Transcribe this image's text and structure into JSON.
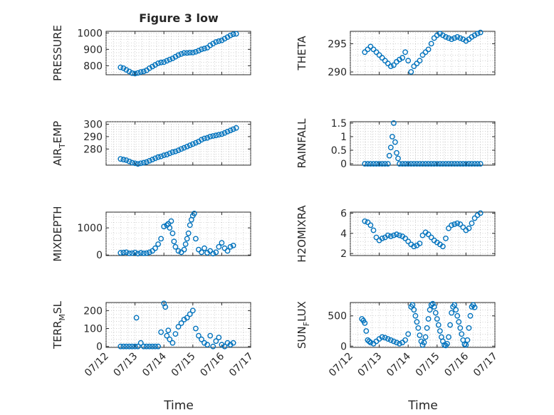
{
  "figure": {
    "title": "Figure 3 low",
    "xlabel": "Time",
    "x_tick_labels": [
      "07/12",
      "07/13",
      "07/14",
      "07/15",
      "07/16",
      "07/17"
    ]
  },
  "chart_data": [
    {
      "type": "scatter",
      "ylabel": "PRESSURE",
      "x_range": [
        "07/12",
        "07/17"
      ],
      "ylim": [
        745,
        1010
      ],
      "yticks": [
        800,
        900,
        1000
      ],
      "grid": true,
      "marker_color": "#0072BD",
      "x": [
        12.5,
        12.6,
        12.7,
        12.8,
        12.9,
        13.0,
        13.1,
        13.2,
        13.3,
        13.4,
        13.5,
        13.6,
        13.7,
        13.8,
        13.9,
        14.0,
        14.1,
        14.2,
        14.3,
        14.4,
        14.5,
        14.6,
        14.7,
        14.8,
        14.9,
        15.0,
        15.1,
        15.2,
        15.3,
        15.4,
        15.5,
        15.6,
        15.7,
        15.8,
        15.9,
        16.0,
        16.1,
        16.2,
        16.3,
        16.4,
        16.5
      ],
      "y": [
        790,
        785,
        775,
        765,
        755,
        752,
        756,
        762,
        765,
        772,
        785,
        795,
        805,
        815,
        820,
        822,
        830,
        838,
        845,
        855,
        865,
        872,
        878,
        878,
        880,
        880,
        885,
        892,
        900,
        905,
        910,
        925,
        935,
        945,
        950,
        955,
        965,
        975,
        985,
        992,
        995
      ]
    },
    {
      "type": "scatter",
      "ylabel": "THETA",
      "x_range": [
        "07/12",
        "07/17"
      ],
      "ylim": [
        289.5,
        297.2
      ],
      "yticks": [
        290,
        295
      ],
      "grid": true,
      "marker_color": "#0072BD",
      "x": [
        12.5,
        12.6,
        12.7,
        12.8,
        12.9,
        13.0,
        13.1,
        13.2,
        13.3,
        13.4,
        13.5,
        13.6,
        13.7,
        13.8,
        13.9,
        14.0,
        14.1,
        14.2,
        14.3,
        14.4,
        14.5,
        14.6,
        14.7,
        14.8,
        14.9,
        15.0,
        15.1,
        15.2,
        15.3,
        15.4,
        15.5,
        15.6,
        15.7,
        15.8,
        15.9,
        16.0,
        16.1,
        16.2,
        16.3,
        16.4,
        16.5
      ],
      "y": [
        293.5,
        294.0,
        294.5,
        294.0,
        293.5,
        293.0,
        292.5,
        292.0,
        291.5,
        291.0,
        291.2,
        291.8,
        292.2,
        292.5,
        293.5,
        292.0,
        290.0,
        291.0,
        291.5,
        292.0,
        293.0,
        293.5,
        294.0,
        295.0,
        296.0,
        296.5,
        296.8,
        296.5,
        296.2,
        296.0,
        295.8,
        296.0,
        296.2,
        296.0,
        295.8,
        295.5,
        295.8,
        296.2,
        296.5,
        296.8,
        297.0
      ]
    },
    {
      "type": "scatter",
      "ylabel": "AIR_TEMP",
      "x_range": [
        "07/12",
        "07/17"
      ],
      "ylim": [
        267,
        302
      ],
      "yticks": [
        280,
        290,
        300
      ],
      "grid": true,
      "marker_color": "#0072BD",
      "x": [
        12.5,
        12.6,
        12.7,
        12.8,
        12.9,
        13.0,
        13.1,
        13.2,
        13.3,
        13.4,
        13.5,
        13.6,
        13.7,
        13.8,
        13.9,
        14.0,
        14.1,
        14.2,
        14.3,
        14.4,
        14.5,
        14.6,
        14.7,
        14.8,
        14.9,
        15.0,
        15.1,
        15.2,
        15.3,
        15.4,
        15.5,
        15.6,
        15.7,
        15.8,
        15.9,
        16.0,
        16.1,
        16.2,
        16.3,
        16.4,
        16.5
      ],
      "y": [
        272,
        271.5,
        271,
        270,
        269,
        268.5,
        268,
        268.5,
        269,
        269.5,
        270.5,
        271.5,
        272.5,
        273.5,
        274,
        275,
        275.5,
        276.5,
        277.5,
        278,
        279,
        280,
        281,
        282,
        283,
        284,
        285,
        286,
        287.5,
        288.5,
        289,
        290,
        290.5,
        291,
        291.5,
        292,
        293,
        294,
        295,
        296,
        297
      ]
    },
    {
      "type": "scatter",
      "ylabel": "RAINFALL",
      "x_range": [
        "07/12",
        "07/17"
      ],
      "ylim": [
        -0.05,
        1.55
      ],
      "yticks": [
        0,
        0.5,
        1,
        1.5
      ],
      "grid": true,
      "marker_color": "#0072BD",
      "x": [
        12.5,
        12.6,
        12.7,
        12.8,
        12.9,
        13.0,
        13.1,
        13.2,
        13.3,
        13.35,
        13.4,
        13.45,
        13.5,
        13.55,
        13.6,
        13.65,
        13.7,
        13.8,
        13.9,
        14.0,
        14.1,
        14.2,
        14.3,
        14.4,
        14.5,
        14.6,
        14.7,
        14.8,
        14.9,
        15.0,
        15.1,
        15.2,
        15.3,
        15.4,
        15.5,
        15.6,
        15.7,
        15.8,
        15.9,
        16.0,
        16.1,
        16.2,
        16.3,
        16.4,
        16.5
      ],
      "y": [
        0,
        0,
        0,
        0,
        0,
        0,
        0,
        0,
        0,
        0.3,
        0.6,
        1.0,
        1.5,
        0.8,
        0.4,
        0.2,
        0,
        0,
        0,
        0,
        0,
        0,
        0,
        0,
        0,
        0,
        0,
        0,
        0,
        0,
        0,
        0,
        0,
        0,
        0,
        0,
        0,
        0,
        0,
        0,
        0,
        0,
        0,
        0,
        0
      ]
    },
    {
      "type": "scatter",
      "ylabel": "MIXDEPTH",
      "x_range": [
        "07/12",
        "07/17"
      ],
      "ylim": [
        -20,
        1580
      ],
      "yticks": [
        0,
        1000
      ],
      "grid": true,
      "marker_color": "#0072BD",
      "x": [
        12.5,
        12.6,
        12.7,
        12.8,
        12.9,
        13.0,
        13.1,
        13.2,
        13.3,
        13.4,
        13.5,
        13.6,
        13.7,
        13.8,
        13.9,
        14.0,
        14.1,
        14.15,
        14.2,
        14.25,
        14.3,
        14.35,
        14.4,
        14.5,
        14.6,
        14.7,
        14.75,
        14.8,
        14.85,
        14.9,
        14.95,
        15.0,
        15.05,
        15.1,
        15.2,
        15.3,
        15.4,
        15.5,
        15.6,
        15.7,
        15.8,
        15.9,
        16.0,
        16.1,
        16.2,
        16.3,
        16.4
      ],
      "y": [
        80,
        90,
        100,
        60,
        70,
        90,
        50,
        80,
        60,
        70,
        100,
        150,
        250,
        400,
        600,
        1050,
        1100,
        1150,
        1000,
        1250,
        800,
        500,
        300,
        150,
        100,
        200,
        400,
        600,
        800,
        1100,
        1300,
        1450,
        1530,
        600,
        200,
        100,
        250,
        80,
        150,
        50,
        100,
        300,
        450,
        250,
        150,
        300,
        350
      ]
    },
    {
      "type": "scatter",
      "ylabel": "H2OMIXRA",
      "x_range": [
        "07/12",
        "07/17"
      ],
      "ylim": [
        1.8,
        6.1
      ],
      "yticks": [
        2,
        4,
        6
      ],
      "grid": true,
      "marker_color": "#0072BD",
      "x": [
        12.5,
        12.6,
        12.7,
        12.8,
        12.9,
        13.0,
        13.1,
        13.2,
        13.3,
        13.4,
        13.5,
        13.6,
        13.7,
        13.8,
        13.9,
        14.0,
        14.1,
        14.2,
        14.3,
        14.4,
        14.5,
        14.6,
        14.7,
        14.8,
        14.9,
        15.0,
        15.1,
        15.2,
        15.3,
        15.4,
        15.5,
        15.6,
        15.7,
        15.8,
        15.9,
        16.0,
        16.1,
        16.2,
        16.3,
        16.4,
        16.5
      ],
      "y": [
        5.2,
        5.1,
        4.8,
        4.3,
        3.6,
        3.3,
        3.5,
        3.6,
        3.8,
        3.7,
        3.8,
        3.9,
        3.8,
        3.7,
        3.5,
        3.2,
        2.9,
        2.7,
        2.8,
        3.0,
        3.8,
        4.1,
        3.9,
        3.6,
        3.3,
        3.1,
        2.9,
        2.7,
        3.5,
        4.5,
        4.8,
        4.9,
        5.0,
        4.9,
        4.6,
        4.3,
        4.5,
        5.0,
        5.5,
        5.8,
        6.0
      ]
    },
    {
      "type": "scatter",
      "ylabel": "TERR_MSL",
      "x_range": [
        "07/12",
        "07/17"
      ],
      "ylim": [
        -5,
        245
      ],
      "yticks": [
        0,
        100,
        200
      ],
      "grid": true,
      "marker_color": "#0072BD",
      "x": [
        12.5,
        12.6,
        12.7,
        12.8,
        12.9,
        13.0,
        13.05,
        13.1,
        13.2,
        13.3,
        13.4,
        13.5,
        13.6,
        13.7,
        13.8,
        13.9,
        14.0,
        14.05,
        14.1,
        14.15,
        14.2,
        14.3,
        14.4,
        14.5,
        14.6,
        14.7,
        14.8,
        14.9,
        15.0,
        15.1,
        15.2,
        15.3,
        15.4,
        15.5,
        15.6,
        15.7,
        15.8,
        15.9,
        16.0,
        16.1,
        16.2,
        16.3,
        16.4
      ],
      "y": [
        0,
        0,
        0,
        0,
        0,
        0,
        160,
        0,
        20,
        0,
        0,
        0,
        0,
        0,
        0,
        80,
        240,
        220,
        60,
        90,
        40,
        20,
        70,
        110,
        130,
        150,
        160,
        180,
        200,
        100,
        60,
        40,
        20,
        10,
        60,
        0,
        30,
        50,
        10,
        0,
        20,
        10,
        20
      ]
    },
    {
      "type": "scatter",
      "ylabel": "SUN_FLUX",
      "x_range": [
        "07/12",
        "07/17"
      ],
      "ylim": [
        -20,
        720
      ],
      "yticks": [
        0,
        500
      ],
      "grid": true,
      "marker_color": "#0072BD",
      "x": [
        12.4,
        12.45,
        12.5,
        12.55,
        12.6,
        12.65,
        12.7,
        12.8,
        12.9,
        13.0,
        13.1,
        13.2,
        13.3,
        13.4,
        13.5,
        13.6,
        13.7,
        13.8,
        13.9,
        14.0,
        14.1,
        14.15,
        14.2,
        14.25,
        14.3,
        14.35,
        14.4,
        14.45,
        14.5,
        14.55,
        14.6,
        14.65,
        14.7,
        14.75,
        14.8,
        14.85,
        14.9,
        14.95,
        15.0,
        15.05,
        15.1,
        15.15,
        15.2,
        15.25,
        15.3,
        15.35,
        15.4,
        15.45,
        15.5,
        15.55,
        15.6,
        15.65,
        15.7,
        15.75,
        15.8,
        15.85,
        15.9,
        15.95,
        16.0,
        16.05,
        16.1,
        16.15,
        16.2,
        16.25,
        16.3
      ],
      "y": [
        450,
        420,
        380,
        250,
        100,
        80,
        60,
        40,
        80,
        120,
        150,
        140,
        120,
        100,
        80,
        60,
        40,
        60,
        100,
        200,
        650,
        680,
        600,
        500,
        400,
        300,
        180,
        80,
        20,
        60,
        150,
        300,
        450,
        600,
        680,
        700,
        650,
        550,
        450,
        350,
        250,
        150,
        80,
        20,
        10,
        40,
        150,
        350,
        550,
        650,
        680,
        600,
        500,
        400,
        300,
        200,
        100,
        30,
        20,
        100,
        300,
        500,
        650,
        680,
        640
      ]
    }
  ]
}
